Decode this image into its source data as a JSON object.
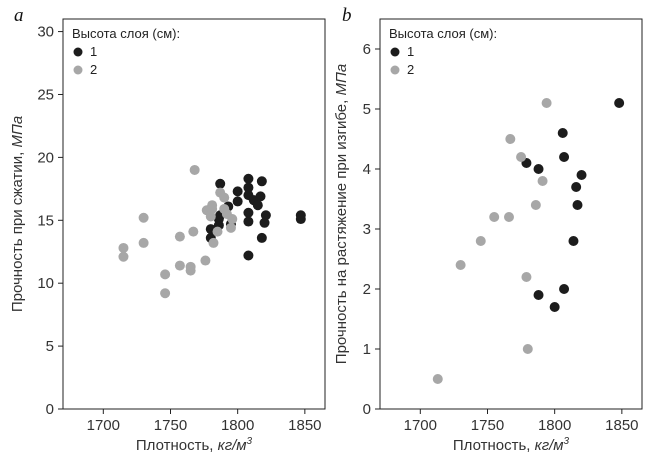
{
  "chart_data": [
    {
      "type": "scatter",
      "panel_label": "a",
      "xlabel": "Плотность, ",
      "xlabel_unit": "кг/м",
      "xlabel_unit_sup": "3",
      "ylabel": "Прочность при сжатии, ",
      "ylabel_unit": "МПа",
      "xlim": [
        1670,
        1865
      ],
      "ylim": [
        0,
        31
      ],
      "xticks": [
        1700,
        1750,
        1800,
        1850
      ],
      "yticks": [
        0,
        5,
        10,
        15,
        20,
        25,
        30
      ],
      "grid": false,
      "legend": {
        "title": "Высота слоя (см):",
        "position": "top-left"
      },
      "series": [
        {
          "name": "1",
          "color": "#1c1c1c",
          "points": [
            [
              1780,
              13.6
            ],
            [
              1780,
              14.3
            ],
            [
              1786,
              14.6
            ],
            [
              1786,
              15.1
            ],
            [
              1787,
              15.4
            ],
            [
              1787,
              17.9
            ],
            [
              1793,
              16.1
            ],
            [
              1795,
              14.7
            ],
            [
              1800,
              16.5
            ],
            [
              1800,
              17.3
            ],
            [
              1808,
              14.9
            ],
            [
              1808,
              15.6
            ],
            [
              1808,
              17.0
            ],
            [
              1808,
              17.6
            ],
            [
              1808,
              18.3
            ],
            [
              1808,
              12.2
            ],
            [
              1812,
              16.6
            ],
            [
              1815,
              16.2
            ],
            [
              1817,
              16.9
            ],
            [
              1818,
              18.1
            ],
            [
              1818,
              13.6
            ],
            [
              1820,
              14.8
            ],
            [
              1821,
              15.4
            ],
            [
              1847,
              15.1
            ],
            [
              1847,
              15.4
            ]
          ]
        },
        {
          "name": "2",
          "color": "#a7a7a7",
          "points": [
            [
              1715,
              12.8
            ],
            [
              1715,
              12.1
            ],
            [
              1730,
              15.2
            ],
            [
              1730,
              13.2
            ],
            [
              1746,
              10.7
            ],
            [
              1746,
              9.2
            ],
            [
              1757,
              13.7
            ],
            [
              1757,
              11.4
            ],
            [
              1765,
              11.0
            ],
            [
              1765,
              11.3
            ],
            [
              1767,
              14.1
            ],
            [
              1768,
              19.0
            ],
            [
              1776,
              11.8
            ],
            [
              1777,
              15.8
            ],
            [
              1780,
              15.3
            ],
            [
              1781,
              16.2
            ],
            [
              1781,
              15.9
            ],
            [
              1782,
              13.2
            ],
            [
              1785,
              14.1
            ],
            [
              1787,
              17.2
            ],
            [
              1790,
              16.8
            ],
            [
              1790,
              15.9
            ],
            [
              1792,
              15.5
            ],
            [
              1795,
              14.4
            ],
            [
              1796,
              15.1
            ]
          ]
        }
      ]
    },
    {
      "type": "scatter",
      "panel_label": "b",
      "xlabel": "Плотность, ",
      "xlabel_unit": "кг/м",
      "xlabel_unit_sup": "3",
      "ylabel": "Прочность на растяжение при изгибе, ",
      "ylabel_unit": "МПа",
      "xlim": [
        1670,
        1865
      ],
      "ylim": [
        0,
        6.5
      ],
      "xticks": [
        1700,
        1750,
        1800,
        1850
      ],
      "yticks": [
        0,
        1,
        2,
        3,
        4,
        5,
        6
      ],
      "grid": false,
      "legend": {
        "title": "Высота слоя (см):",
        "position": "top-left"
      },
      "series": [
        {
          "name": "1",
          "color": "#1c1c1c",
          "points": [
            [
              1779,
              4.1
            ],
            [
              1788,
              4.0
            ],
            [
              1788,
              1.9
            ],
            [
              1800,
              1.7
            ],
            [
              1806,
              4.6
            ],
            [
              1807,
              4.2
            ],
            [
              1807,
              2.0
            ],
            [
              1814,
              2.8
            ],
            [
              1816,
              3.7
            ],
            [
              1817,
              3.4
            ],
            [
              1820,
              3.9
            ],
            [
              1848,
              5.1
            ]
          ]
        },
        {
          "name": "2",
          "color": "#a7a7a7",
          "points": [
            [
              1713,
              0.5
            ],
            [
              1730,
              2.4
            ],
            [
              1745,
              2.8
            ],
            [
              1755,
              3.2
            ],
            [
              1766,
              3.2
            ],
            [
              1767,
              4.5
            ],
            [
              1775,
              4.2
            ],
            [
              1779,
              2.2
            ],
            [
              1780,
              1.0
            ],
            [
              1786,
              3.4
            ],
            [
              1791,
              3.8
            ],
            [
              1794,
              5.1
            ]
          ]
        }
      ]
    }
  ]
}
